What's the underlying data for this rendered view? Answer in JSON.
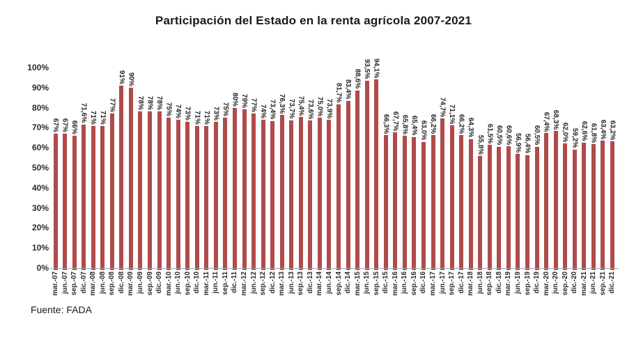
{
  "chart_data": {
    "type": "bar",
    "title": "Participación del Estado en la renta agrícola 2007-2021",
    "source": "Fuente: FADA",
    "xlabel": "",
    "ylabel": "",
    "ylim": [
      0,
      100
    ],
    "y_ticks": [
      "0%",
      "10%",
      "20%",
      "30%",
      "40%",
      "50%",
      "60%",
      "70%",
      "80%",
      "90%",
      "100%"
    ],
    "grid": false,
    "legend": "none",
    "bar_color": "#B04A4B",
    "categories": [
      "mar.-07",
      "jun.-07",
      "sep.-07",
      "dic.-07",
      "mar.-08",
      "jun.-08",
      "sep.-08",
      "dic.-08",
      "mar.-09",
      "jun.-09",
      "sep.-09",
      "dic.-09",
      "mar.-10",
      "jun.-10",
      "sep.-10",
      "dic.-10",
      "mar.-11",
      "jun.-11",
      "sep.-11",
      "dic.-11",
      "mar.-12",
      "jun.-12",
      "sep.-12",
      "dic.-12",
      "mar.-13",
      "jun.-13",
      "sep.-13",
      "dic.-13",
      "mar.-14",
      "jun.-14",
      "sep.-14",
      "dic.-14",
      "mar.-15",
      "jun.-15",
      "sep.-15",
      "dic.-15",
      "mar.-16",
      "jun.-16",
      "sep.-16",
      "dic.-16",
      "mar.-17",
      "jun.-17",
      "sep.-17",
      "dic.-17",
      "mar.-18",
      "jun.-18",
      "sep.-18",
      "dic.-18",
      "mar.-19",
      "jun.-19",
      "sep.-19",
      "dic.-19",
      "mar.-20",
      "jun.-20",
      "sep.-20",
      "dic.-20",
      "mar.-21",
      "jun.-21",
      "sep.-21",
      "dic.-21"
    ],
    "values": [
      67,
      67,
      66,
      71.6,
      71,
      71,
      77,
      91,
      90,
      78,
      78,
      78,
      75,
      74,
      73,
      71,
      71,
      73,
      75,
      80,
      79,
      77,
      74,
      73.4,
      76.3,
      73.7,
      75.4,
      73.6,
      75.0,
      73.9,
      81.7,
      83.4,
      88.6,
      93.5,
      94.1,
      66.3,
      67.7,
      65.8,
      65.4,
      63.0,
      66.2,
      74.7,
      71.1,
      66.2,
      64.3,
      55.8,
      61.5,
      60.5,
      60.6,
      56.9,
      56.4,
      60.5,
      67.4,
      68.3,
      62.0,
      59.2,
      62.6,
      61.8,
      63.4,
      63.2
    ],
    "value_labels": [
      "67%",
      "67%",
      "66%",
      "71,6%",
      "71%",
      "71%",
      "77%",
      "91%",
      "90%",
      "78%",
      "78%",
      "78%",
      "75%",
      "74%",
      "73%",
      "71%",
      "71%",
      "73%",
      "75%",
      "80%",
      "79%",
      "77%",
      "74%",
      "73,4%",
      "76,3%",
      "73,7%",
      "75,4%",
      "73,6%",
      "75,0%",
      "73,9%",
      "81,7%",
      "83,4%",
      "88,6%",
      "93,5%",
      "94,1%",
      "66,3%",
      "67,7%",
      "65,8%",
      "65,4%",
      "63,0%",
      "66,2%",
      "74,7%",
      "71,1%",
      "66,2%",
      "64,3%",
      "55,8%",
      "61,5%",
      "60,5%",
      "60,6%",
      "56,9%",
      "56,4%",
      "60,5%",
      "67,4%",
      "68,3%",
      "62,0%",
      "59,2%",
      "62,6%",
      "61,8%",
      "63,4%",
      "63,2%"
    ]
  }
}
